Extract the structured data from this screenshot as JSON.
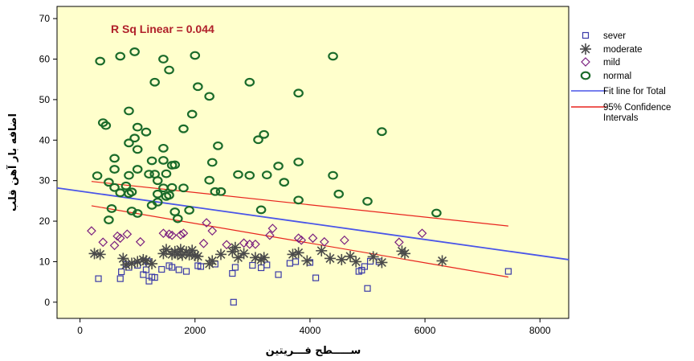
{
  "chart_data": {
    "type": "scatter",
    "xlabel": "ســـــطح فـــريتين",
    "ylabel": "اضافه بار آهن قلب",
    "xlim": [
      -400,
      8500
    ],
    "ylim": [
      -4,
      73
    ],
    "xticks": [
      0,
      2000,
      4000,
      6000,
      8000
    ],
    "yticks": [
      0,
      10,
      20,
      30,
      40,
      50,
      60,
      70
    ],
    "annotation": "R Sq Linear = 0.044",
    "legend_position": "right",
    "series": [
      {
        "name": "sever",
        "marker": "square",
        "color": "#3a3aa8",
        "points": [
          [
            320,
            5.8
          ],
          [
            700,
            5.8
          ],
          [
            720,
            7.5
          ],
          [
            800,
            9.3
          ],
          [
            850,
            8.6
          ],
          [
            1000,
            9.1
          ],
          [
            1100,
            6.8
          ],
          [
            1150,
            8.0
          ],
          [
            1180,
            10.0
          ],
          [
            1300,
            6.1
          ],
          [
            1200,
            5.2
          ],
          [
            1250,
            6.2
          ],
          [
            1420,
            8.1
          ],
          [
            1550,
            9.0
          ],
          [
            1600,
            8.6
          ],
          [
            1720,
            8.0
          ],
          [
            1850,
            7.6
          ],
          [
            2050,
            9.0
          ],
          [
            2100,
            8.8
          ],
          [
            2350,
            9.4
          ],
          [
            2650,
            7.1
          ],
          [
            2700,
            8.6
          ],
          [
            2670,
            0.0
          ],
          [
            3000,
            9.1
          ],
          [
            3250,
            9.2
          ],
          [
            3150,
            8.5
          ],
          [
            3450,
            6.8
          ],
          [
            3650,
            9.6
          ],
          [
            3750,
            10.0
          ],
          [
            4000,
            9.8
          ],
          [
            4100,
            6.0
          ],
          [
            4850,
            7.6
          ],
          [
            4900,
            7.9
          ],
          [
            4950,
            8.8
          ],
          [
            5000,
            3.4
          ],
          [
            5200,
            10.0
          ],
          [
            5050,
            10.1
          ],
          [
            7450,
            7.6
          ]
        ]
      },
      {
        "name": "moderate",
        "marker": "star",
        "color": "#4a4a4a",
        "points": [
          [
            250,
            12.0
          ],
          [
            350,
            11.8
          ],
          [
            750,
            10.8
          ],
          [
            800,
            9.2
          ],
          [
            900,
            9.6
          ],
          [
            1000,
            10.0
          ],
          [
            1100,
            10.5
          ],
          [
            1150,
            10.2
          ],
          [
            1250,
            9.5
          ],
          [
            1450,
            12.0
          ],
          [
            1500,
            13.0
          ],
          [
            1600,
            11.8
          ],
          [
            1650,
            12.5
          ],
          [
            1700,
            11.8
          ],
          [
            1750,
            13.0
          ],
          [
            1780,
            11.6
          ],
          [
            1850,
            12.4
          ],
          [
            1900,
            11.7
          ],
          [
            1950,
            12.8
          ],
          [
            2000,
            11.5
          ],
          [
            2050,
            11.3
          ],
          [
            2250,
            9.5
          ],
          [
            2300,
            10.2
          ],
          [
            2450,
            11.8
          ],
          [
            2650,
            12.5
          ],
          [
            2700,
            13.5
          ],
          [
            2750,
            11.0
          ],
          [
            2850,
            12.0
          ],
          [
            3050,
            11.0
          ],
          [
            3150,
            10.5
          ],
          [
            3200,
            11.0
          ],
          [
            3700,
            11.8
          ],
          [
            3800,
            12.2
          ],
          [
            3950,
            10.2
          ],
          [
            4200,
            12.7
          ],
          [
            4350,
            10.8
          ],
          [
            4550,
            10.5
          ],
          [
            4700,
            11.3
          ],
          [
            4800,
            10.0
          ],
          [
            5100,
            11.2
          ],
          [
            5250,
            9.8
          ],
          [
            5600,
            12.6
          ],
          [
            5650,
            12.0
          ],
          [
            6300,
            10.2
          ]
        ]
      },
      {
        "name": "mild",
        "marker": "diamond",
        "color": "#7a1f7f",
        "points": [
          [
            200,
            17.6
          ],
          [
            400,
            14.8
          ],
          [
            600,
            14.0
          ],
          [
            650,
            16.3
          ],
          [
            700,
            15.8
          ],
          [
            820,
            16.8
          ],
          [
            1050,
            14.9
          ],
          [
            1450,
            17.0
          ],
          [
            1550,
            16.8
          ],
          [
            1600,
            16.5
          ],
          [
            1750,
            16.6
          ],
          [
            1800,
            17.0
          ],
          [
            2150,
            14.5
          ],
          [
            2200,
            19.6
          ],
          [
            2300,
            17.6
          ],
          [
            2550,
            14.2
          ],
          [
            2850,
            14.6
          ],
          [
            2950,
            14.3
          ],
          [
            3050,
            14.3
          ],
          [
            3300,
            16.5
          ],
          [
            3350,
            18.2
          ],
          [
            3800,
            15.8
          ],
          [
            3850,
            15.3
          ],
          [
            4050,
            15.8
          ],
          [
            4250,
            14.9
          ],
          [
            4600,
            15.3
          ],
          [
            5550,
            14.8
          ],
          [
            5950,
            17.0
          ]
        ]
      },
      {
        "name": "normal",
        "marker": "circle",
        "color": "#1a6b2a",
        "points": [
          [
            350,
            59.5
          ],
          [
            700,
            60.7
          ],
          [
            950,
            61.8
          ],
          [
            1450,
            60.0
          ],
          [
            2000,
            60.9
          ],
          [
            4400,
            60.7
          ],
          [
            1550,
            57.3
          ],
          [
            1300,
            54.3
          ],
          [
            2050,
            53.2
          ],
          [
            2950,
            54.3
          ],
          [
            2250,
            50.8
          ],
          [
            3800,
            51.6
          ],
          [
            850,
            47.2
          ],
          [
            1950,
            46.4
          ],
          [
            5250,
            42.1
          ],
          [
            400,
            44.3
          ],
          [
            450,
            43.6
          ],
          [
            1000,
            43.2
          ],
          [
            1150,
            42.0
          ],
          [
            1800,
            42.8
          ],
          [
            3200,
            41.4
          ],
          [
            3100,
            40.1
          ],
          [
            850,
            39.3
          ],
          [
            950,
            40.5
          ],
          [
            1000,
            37.7
          ],
          [
            1450,
            38.0
          ],
          [
            2400,
            38.6
          ],
          [
            600,
            35.5
          ],
          [
            1250,
            34.9
          ],
          [
            1450,
            35.0
          ],
          [
            1600,
            33.8
          ],
          [
            1650,
            33.9
          ],
          [
            2300,
            34.5
          ],
          [
            3450,
            33.6
          ],
          [
            3800,
            34.6
          ],
          [
            600,
            32.8
          ],
          [
            1000,
            32.8
          ],
          [
            1300,
            31.6
          ],
          [
            1500,
            31.7
          ],
          [
            300,
            31.2
          ],
          [
            850,
            31.3
          ],
          [
            1200,
            31.6
          ],
          [
            2750,
            31.5
          ],
          [
            2950,
            31.3
          ],
          [
            3250,
            31.4
          ],
          [
            4400,
            31.3
          ],
          [
            500,
            29.6
          ],
          [
            1350,
            30.0
          ],
          [
            2250,
            30.1
          ],
          [
            3550,
            29.6
          ],
          [
            600,
            28.3
          ],
          [
            800,
            28.7
          ],
          [
            1450,
            28.2
          ],
          [
            1600,
            28.3
          ],
          [
            1800,
            28.2
          ],
          [
            2350,
            27.3
          ],
          [
            2450,
            27.3
          ],
          [
            4500,
            26.7
          ],
          [
            700,
            27.0
          ],
          [
            850,
            26.8
          ],
          [
            900,
            27.2
          ],
          [
            1350,
            26.7
          ],
          [
            1500,
            26.1
          ],
          [
            1550,
            26.4
          ],
          [
            1350,
            24.7
          ],
          [
            1250,
            23.9
          ],
          [
            3800,
            25.2
          ],
          [
            5000,
            24.9
          ],
          [
            550,
            23.1
          ],
          [
            900,
            22.5
          ],
          [
            1000,
            21.9
          ],
          [
            1650,
            22.3
          ],
          [
            1900,
            22.7
          ],
          [
            3150,
            22.8
          ],
          [
            6200,
            22.0
          ],
          [
            500,
            20.3
          ],
          [
            1700,
            20.6
          ]
        ]
      }
    ],
    "fit_line": {
      "name": "Fit line for Total",
      "color": "#4a55e8",
      "x": [
        -400,
        8500
      ],
      "y": [
        28.2,
        10.5
      ]
    },
    "ci_upper": {
      "name": "95% Confidence Intervals",
      "color": "#e8241e",
      "x": [
        200,
        7450
      ],
      "y": [
        29.8,
        18.8
      ]
    },
    "ci_lower": {
      "name": "95% Confidence Intervals",
      "color": "#e8241e",
      "x": [
        200,
        7450
      ],
      "y": [
        23.8,
        6.2
      ]
    },
    "plot_bg": "#ffffcc"
  },
  "legend": [
    {
      "label": "sever",
      "marker": "square",
      "color": "#3a3aa8"
    },
    {
      "label": "moderate",
      "marker": "star",
      "color": "#4a4a4a"
    },
    {
      "label": "mild",
      "marker": "diamond",
      "color": "#7a1f7f"
    },
    {
      "label": "normal",
      "marker": "circle",
      "color": "#1a6b2a"
    },
    {
      "label": "Fit line for Total",
      "marker": "line",
      "color": "#4a55e8"
    },
    {
      "label": "95% Confidence Intervals",
      "marker": "line",
      "color": "#e8241e"
    }
  ]
}
